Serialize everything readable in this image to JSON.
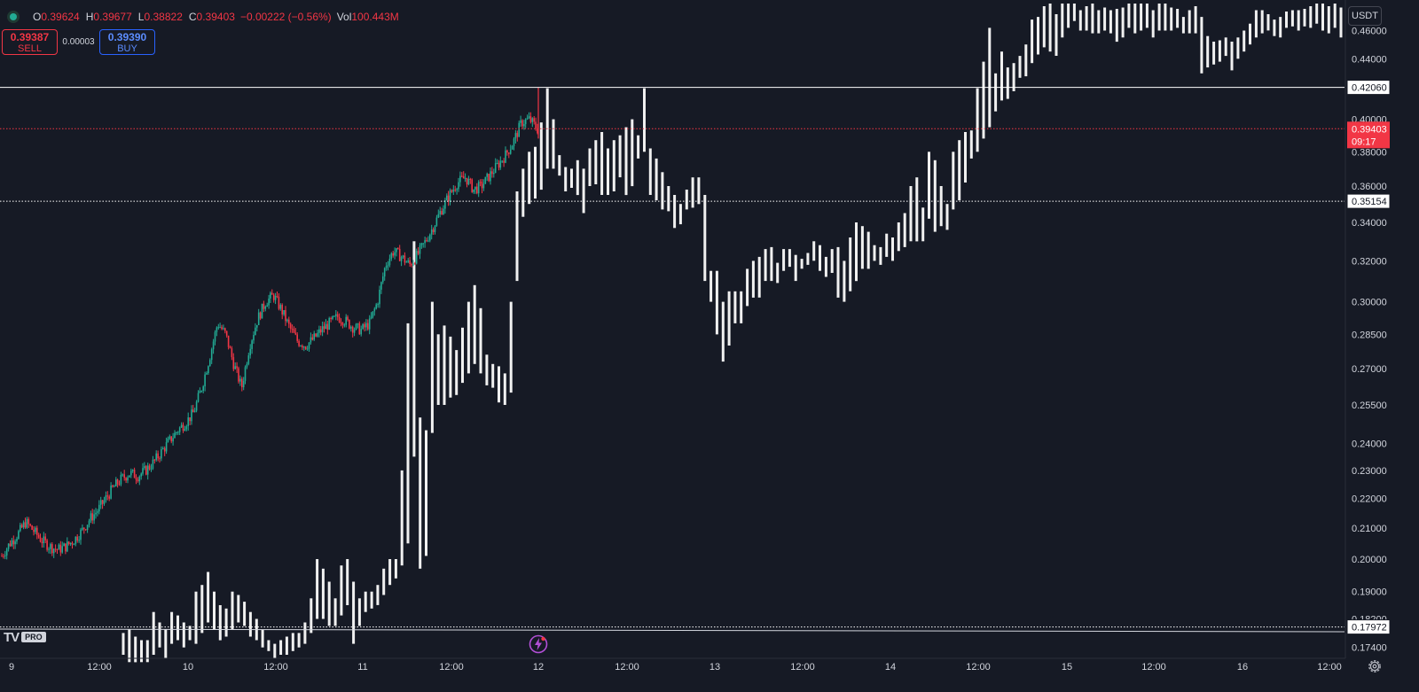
{
  "legend": {
    "open_key": "O",
    "open": "0.39624",
    "high_key": "H",
    "high": "0.39677",
    "low_key": "L",
    "low": "0.38822",
    "close_key": "C",
    "close": "0.39403",
    "change": "−0.00222 (−0.56%)",
    "vol_key": "Vol",
    "vol": "100.443M"
  },
  "trade": {
    "sell_price": "0.39387",
    "sell_label": "SELL",
    "spread": "0.00003",
    "buy_price": "0.39390",
    "buy_label": "BUY"
  },
  "currency_button": "USDT",
  "logo": {
    "mark": "TV",
    "badge": "PRO"
  },
  "icons": {
    "settings": "gear-icon",
    "flash": "lightning-icon",
    "status": "status-dot-icon"
  },
  "colors": {
    "background": "#161a25",
    "up": "#22ab94",
    "down": "#f23645",
    "bars": "#f0f0f0",
    "accent": "#2962ff"
  },
  "chart_data": {
    "type": "candlestick",
    "scale": "log",
    "ylim": [
      0.172,
      0.48
    ],
    "y_ticks": [
      "0.46000",
      "0.44000",
      "0.40000",
      "0.38000",
      "0.36000",
      "0.34000",
      "0.32000",
      "0.30000",
      "0.28500",
      "0.27000",
      "0.25500",
      "0.24000",
      "0.23000",
      "0.22000",
      "0.21000",
      "0.20000",
      "0.19000",
      "0.18200",
      "0.17400"
    ],
    "x_ticks": [
      "9",
      "12:00",
      "10",
      "12:00",
      "11",
      "12:00",
      "12",
      "12:00",
      "13",
      "12:00",
      "14",
      "12:00",
      "15",
      "12:00",
      "16",
      "12:00"
    ],
    "horizontal_lines": [
      {
        "label": "0.42060",
        "style": "solid",
        "color": "#ffffff"
      },
      {
        "label": "0.35154",
        "style": "dotted",
        "color": "#ffffff"
      },
      {
        "label": "0.17972",
        "style": "dotted",
        "color": "#ffffff"
      }
    ],
    "last_price": {
      "value": "0.39403",
      "countdown": "09:17",
      "color": "#f23645"
    },
    "candle_close_path": [
      0.201,
      0.205,
      0.208,
      0.212,
      0.209,
      0.206,
      0.204,
      0.203,
      0.204,
      0.206,
      0.209,
      0.213,
      0.216,
      0.22,
      0.224,
      0.227,
      0.229,
      0.228,
      0.23,
      0.233,
      0.237,
      0.241,
      0.245,
      0.248,
      0.252,
      0.262,
      0.275,
      0.29,
      0.285,
      0.272,
      0.262,
      0.28,
      0.292,
      0.3,
      0.303,
      0.296,
      0.288,
      0.282,
      0.28,
      0.283,
      0.287,
      0.29,
      0.293,
      0.291,
      0.288,
      0.287,
      0.29,
      0.3,
      0.318,
      0.325,
      0.322,
      0.318,
      0.323,
      0.33,
      0.338,
      0.347,
      0.355,
      0.362,
      0.365,
      0.358,
      0.36,
      0.366,
      0.372,
      0.378,
      0.386,
      0.398,
      0.4,
      0.394
    ],
    "overlay_bars": [
      {
        "low": 0.172,
        "high": 0.178
      },
      {
        "low": 0.17,
        "high": 0.179
      },
      {
        "low": 0.17,
        "high": 0.177
      },
      {
        "low": 0.17,
        "high": 0.176
      },
      {
        "low": 0.17,
        "high": 0.176
      },
      {
        "low": 0.172,
        "high": 0.184
      },
      {
        "low": 0.174,
        "high": 0.181
      },
      {
        "low": 0.171,
        "high": 0.179
      },
      {
        "low": 0.175,
        "high": 0.184
      },
      {
        "low": 0.176,
        "high": 0.183
      },
      {
        "low": 0.174,
        "high": 0.181
      },
      {
        "low": 0.176,
        "high": 0.18
      },
      {
        "low": 0.175,
        "high": 0.19
      },
      {
        "low": 0.178,
        "high": 0.192
      },
      {
        "low": 0.181,
        "high": 0.196
      },
      {
        "low": 0.179,
        "high": 0.19
      },
      {
        "low": 0.176,
        "high": 0.186
      },
      {
        "low": 0.177,
        "high": 0.185
      },
      {
        "low": 0.179,
        "high": 0.19
      },
      {
        "low": 0.181,
        "high": 0.189
      },
      {
        "low": 0.18,
        "high": 0.187
      },
      {
        "low": 0.177,
        "high": 0.184
      },
      {
        "low": 0.176,
        "high": 0.182
      },
      {
        "low": 0.174,
        "high": 0.179
      },
      {
        "low": 0.173,
        "high": 0.176
      },
      {
        "low": 0.171,
        "high": 0.175
      },
      {
        "low": 0.172,
        "high": 0.176
      },
      {
        "low": 0.172,
        "high": 0.177
      },
      {
        "low": 0.173,
        "high": 0.178
      },
      {
        "low": 0.174,
        "high": 0.178
      },
      {
        "low": 0.175,
        "high": 0.181
      },
      {
        "low": 0.178,
        "high": 0.188
      },
      {
        "low": 0.182,
        "high": 0.2
      },
      {
        "low": 0.182,
        "high": 0.197
      },
      {
        "low": 0.18,
        "high": 0.193
      },
      {
        "low": 0.18,
        "high": 0.188
      },
      {
        "low": 0.183,
        "high": 0.198
      },
      {
        "low": 0.186,
        "high": 0.2
      },
      {
        "low": 0.175,
        "high": 0.193
      },
      {
        "low": 0.18,
        "high": 0.188
      },
      {
        "low": 0.184,
        "high": 0.19
      },
      {
        "low": 0.185,
        "high": 0.19
      },
      {
        "low": 0.186,
        "high": 0.192
      },
      {
        "low": 0.189,
        "high": 0.197
      },
      {
        "low": 0.192,
        "high": 0.2
      },
      {
        "low": 0.194,
        "high": 0.2
      },
      {
        "low": 0.198,
        "high": 0.23
      },
      {
        "low": 0.205,
        "high": 0.29
      },
      {
        "low": 0.235,
        "high": 0.33
      },
      {
        "low": 0.197,
        "high": 0.25
      },
      {
        "low": 0.201,
        "high": 0.245
      },
      {
        "low": 0.244,
        "high": 0.3
      },
      {
        "low": 0.255,
        "high": 0.285
      },
      {
        "low": 0.255,
        "high": 0.289
      },
      {
        "low": 0.258,
        "high": 0.284
      },
      {
        "low": 0.259,
        "high": 0.278
      },
      {
        "low": 0.264,
        "high": 0.288
      },
      {
        "low": 0.268,
        "high": 0.3
      },
      {
        "low": 0.272,
        "high": 0.308
      },
      {
        "low": 0.268,
        "high": 0.297
      },
      {
        "low": 0.263,
        "high": 0.276
      },
      {
        "low": 0.262,
        "high": 0.272
      },
      {
        "low": 0.256,
        "high": 0.271
      },
      {
        "low": 0.255,
        "high": 0.268
      },
      {
        "low": 0.26,
        "high": 0.3
      },
      {
        "low": 0.31,
        "high": 0.357
      },
      {
        "low": 0.343,
        "high": 0.37
      },
      {
        "low": 0.35,
        "high": 0.38
      },
      {
        "low": 0.353,
        "high": 0.383
      },
      {
        "low": 0.358,
        "high": 0.398
      },
      {
        "low": 0.37,
        "high": 0.42
      },
      {
        "low": 0.37,
        "high": 0.4
      },
      {
        "low": 0.366,
        "high": 0.378
      },
      {
        "low": 0.357,
        "high": 0.371
      },
      {
        "low": 0.359,
        "high": 0.37
      },
      {
        "low": 0.355,
        "high": 0.375
      },
      {
        "low": 0.345,
        "high": 0.37
      },
      {
        "low": 0.36,
        "high": 0.382
      },
      {
        "low": 0.361,
        "high": 0.387
      },
      {
        "low": 0.355,
        "high": 0.392
      },
      {
        "low": 0.355,
        "high": 0.382
      },
      {
        "low": 0.357,
        "high": 0.387
      },
      {
        "low": 0.365,
        "high": 0.39
      },
      {
        "low": 0.355,
        "high": 0.395
      },
      {
        "low": 0.36,
        "high": 0.4
      },
      {
        "low": 0.376,
        "high": 0.39
      },
      {
        "low": 0.38,
        "high": 0.42
      },
      {
        "low": 0.355,
        "high": 0.382
      },
      {
        "low": 0.352,
        "high": 0.376
      },
      {
        "low": 0.347,
        "high": 0.368
      },
      {
        "low": 0.346,
        "high": 0.36
      },
      {
        "low": 0.337,
        "high": 0.355
      },
      {
        "low": 0.339,
        "high": 0.35
      },
      {
        "low": 0.347,
        "high": 0.358
      },
      {
        "low": 0.348,
        "high": 0.365
      },
      {
        "low": 0.35,
        "high": 0.365
      },
      {
        "low": 0.31,
        "high": 0.355
      },
      {
        "low": 0.3,
        "high": 0.315
      },
      {
        "low": 0.285,
        "high": 0.315
      },
      {
        "low": 0.273,
        "high": 0.3
      },
      {
        "low": 0.28,
        "high": 0.305
      },
      {
        "low": 0.29,
        "high": 0.305
      },
      {
        "low": 0.29,
        "high": 0.305
      },
      {
        "low": 0.298,
        "high": 0.316
      },
      {
        "low": 0.302,
        "high": 0.32
      },
      {
        "low": 0.302,
        "high": 0.322
      },
      {
        "low": 0.31,
        "high": 0.326
      },
      {
        "low": 0.31,
        "high": 0.327
      },
      {
        "low": 0.309,
        "high": 0.319
      },
      {
        "low": 0.315,
        "high": 0.326
      },
      {
        "low": 0.317,
        "high": 0.326
      },
      {
        "low": 0.31,
        "high": 0.323
      },
      {
        "low": 0.316,
        "high": 0.321
      },
      {
        "low": 0.318,
        "high": 0.324
      },
      {
        "low": 0.32,
        "high": 0.33
      },
      {
        "low": 0.315,
        "high": 0.328
      },
      {
        "low": 0.312,
        "high": 0.322
      },
      {
        "low": 0.314,
        "high": 0.326
      },
      {
        "low": 0.302,
        "high": 0.327
      },
      {
        "low": 0.3,
        "high": 0.32
      },
      {
        "low": 0.305,
        "high": 0.332
      },
      {
        "low": 0.31,
        "high": 0.34
      },
      {
        "low": 0.316,
        "high": 0.338
      },
      {
        "low": 0.316,
        "high": 0.335
      },
      {
        "low": 0.32,
        "high": 0.328
      },
      {
        "low": 0.318,
        "high": 0.327
      },
      {
        "low": 0.322,
        "high": 0.334
      },
      {
        "low": 0.32,
        "high": 0.332
      },
      {
        "low": 0.325,
        "high": 0.34
      },
      {
        "low": 0.327,
        "high": 0.345
      },
      {
        "low": 0.33,
        "high": 0.36
      },
      {
        "low": 0.33,
        "high": 0.365
      },
      {
        "low": 0.33,
        "high": 0.348
      },
      {
        "low": 0.342,
        "high": 0.38
      },
      {
        "low": 0.335,
        "high": 0.375
      },
      {
        "low": 0.338,
        "high": 0.36
      },
      {
        "low": 0.336,
        "high": 0.35
      },
      {
        "low": 0.347,
        "high": 0.38
      },
      {
        "low": 0.352,
        "high": 0.387
      },
      {
        "low": 0.362,
        "high": 0.392
      },
      {
        "low": 0.376,
        "high": 0.393
      },
      {
        "low": 0.38,
        "high": 0.42
      },
      {
        "low": 0.388,
        "high": 0.438
      },
      {
        "low": 0.395,
        "high": 0.462
      },
      {
        "low": 0.405,
        "high": 0.43
      },
      {
        "low": 0.412,
        "high": 0.445
      },
      {
        "low": 0.413,
        "high": 0.434
      },
      {
        "low": 0.418,
        "high": 0.437
      },
      {
        "low": 0.427,
        "high": 0.442
      },
      {
        "low": 0.428,
        "high": 0.45
      },
      {
        "low": 0.437,
        "high": 0.468
      },
      {
        "low": 0.443,
        "high": 0.47
      },
      {
        "low": 0.448,
        "high": 0.478
      },
      {
        "low": 0.445,
        "high": 0.48
      },
      {
        "low": 0.442,
        "high": 0.472
      },
      {
        "low": 0.455,
        "high": 0.48
      },
      {
        "low": 0.462,
        "high": 0.48
      },
      {
        "low": 0.467,
        "high": 0.48
      },
      {
        "low": 0.46,
        "high": 0.475
      },
      {
        "low": 0.46,
        "high": 0.478
      },
      {
        "low": 0.458,
        "high": 0.48
      },
      {
        "low": 0.458,
        "high": 0.475
      },
      {
        "low": 0.46,
        "high": 0.477
      },
      {
        "low": 0.458,
        "high": 0.475
      },
      {
        "low": 0.452,
        "high": 0.476
      },
      {
        "low": 0.455,
        "high": 0.477
      },
      {
        "low": 0.462,
        "high": 0.48
      },
      {
        "low": 0.458,
        "high": 0.48
      },
      {
        "low": 0.46,
        "high": 0.48
      },
      {
        "low": 0.462,
        "high": 0.48
      },
      {
        "low": 0.455,
        "high": 0.475
      },
      {
        "low": 0.46,
        "high": 0.48
      },
      {
        "low": 0.46,
        "high": 0.48
      },
      {
        "low": 0.46,
        "high": 0.477
      },
      {
        "low": 0.462,
        "high": 0.476
      },
      {
        "low": 0.458,
        "high": 0.47
      },
      {
        "low": 0.458,
        "high": 0.475
      },
      {
        "low": 0.458,
        "high": 0.478
      },
      {
        "low": 0.43,
        "high": 0.47
      },
      {
        "low": 0.434,
        "high": 0.456
      },
      {
        "low": 0.436,
        "high": 0.452
      },
      {
        "low": 0.438,
        "high": 0.453
      },
      {
        "low": 0.442,
        "high": 0.455
      },
      {
        "low": 0.432,
        "high": 0.452
      },
      {
        "low": 0.44,
        "high": 0.455
      },
      {
        "low": 0.445,
        "high": 0.46
      },
      {
        "low": 0.45,
        "high": 0.465
      },
      {
        "low": 0.455,
        "high": 0.475
      },
      {
        "low": 0.458,
        "high": 0.475
      },
      {
        "low": 0.46,
        "high": 0.472
      },
      {
        "low": 0.456,
        "high": 0.468
      },
      {
        "low": 0.455,
        "high": 0.47
      },
      {
        "low": 0.462,
        "h2": 0,
        "high": 0.474
      },
      {
        "low": 0.463,
        "high": 0.475
      },
      {
        "low": 0.46,
        "high": 0.475
      },
      {
        "low": 0.463,
        "high": 0.476
      },
      {
        "low": 0.462,
        "high": 0.478
      },
      {
        "low": 0.465,
        "high": 0.48
      },
      {
        "low": 0.46,
        "high": 0.48
      },
      {
        "low": 0.458,
        "high": 0.478
      },
      {
        "low": 0.462,
        "high": 0.48
      },
      {
        "low": 0.455,
        "high": 0.477
      }
    ]
  }
}
